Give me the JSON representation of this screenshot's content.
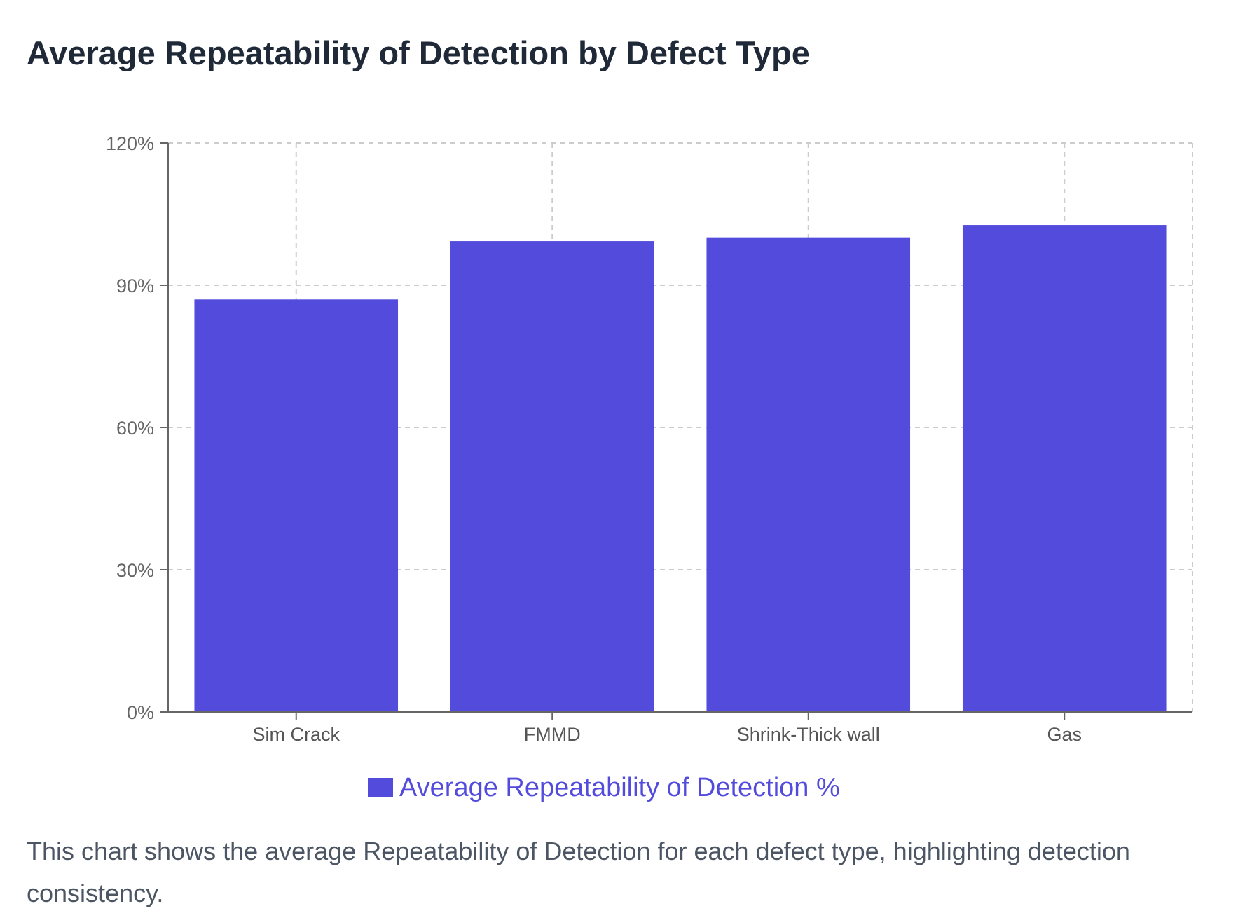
{
  "title": "Average Repeatability of Detection by Defect Type",
  "caption": "This chart shows the average Repeatability of Detection for each defect type, highlighting detection consistency.",
  "colors": {
    "bar": "#534bdc",
    "axis": "#666666",
    "grid": "#cccccc",
    "legend_text": "#534bdc"
  },
  "chart_data": {
    "type": "bar",
    "categories": [
      "Sim Crack",
      "FMMD",
      "Shrink-Thick wall",
      "Gas"
    ],
    "series": [
      {
        "name": "Average Repeatability of Detection %",
        "values": [
          87.0,
          99.3,
          100.1,
          102.7
        ]
      }
    ],
    "ylim": [
      0,
      120
    ],
    "yticks": [
      0,
      30,
      60,
      90,
      120
    ],
    "ytick_labels": [
      "0%",
      "30%",
      "60%",
      "90%",
      "120%"
    ],
    "grid": true,
    "legend_position": "bottom"
  }
}
